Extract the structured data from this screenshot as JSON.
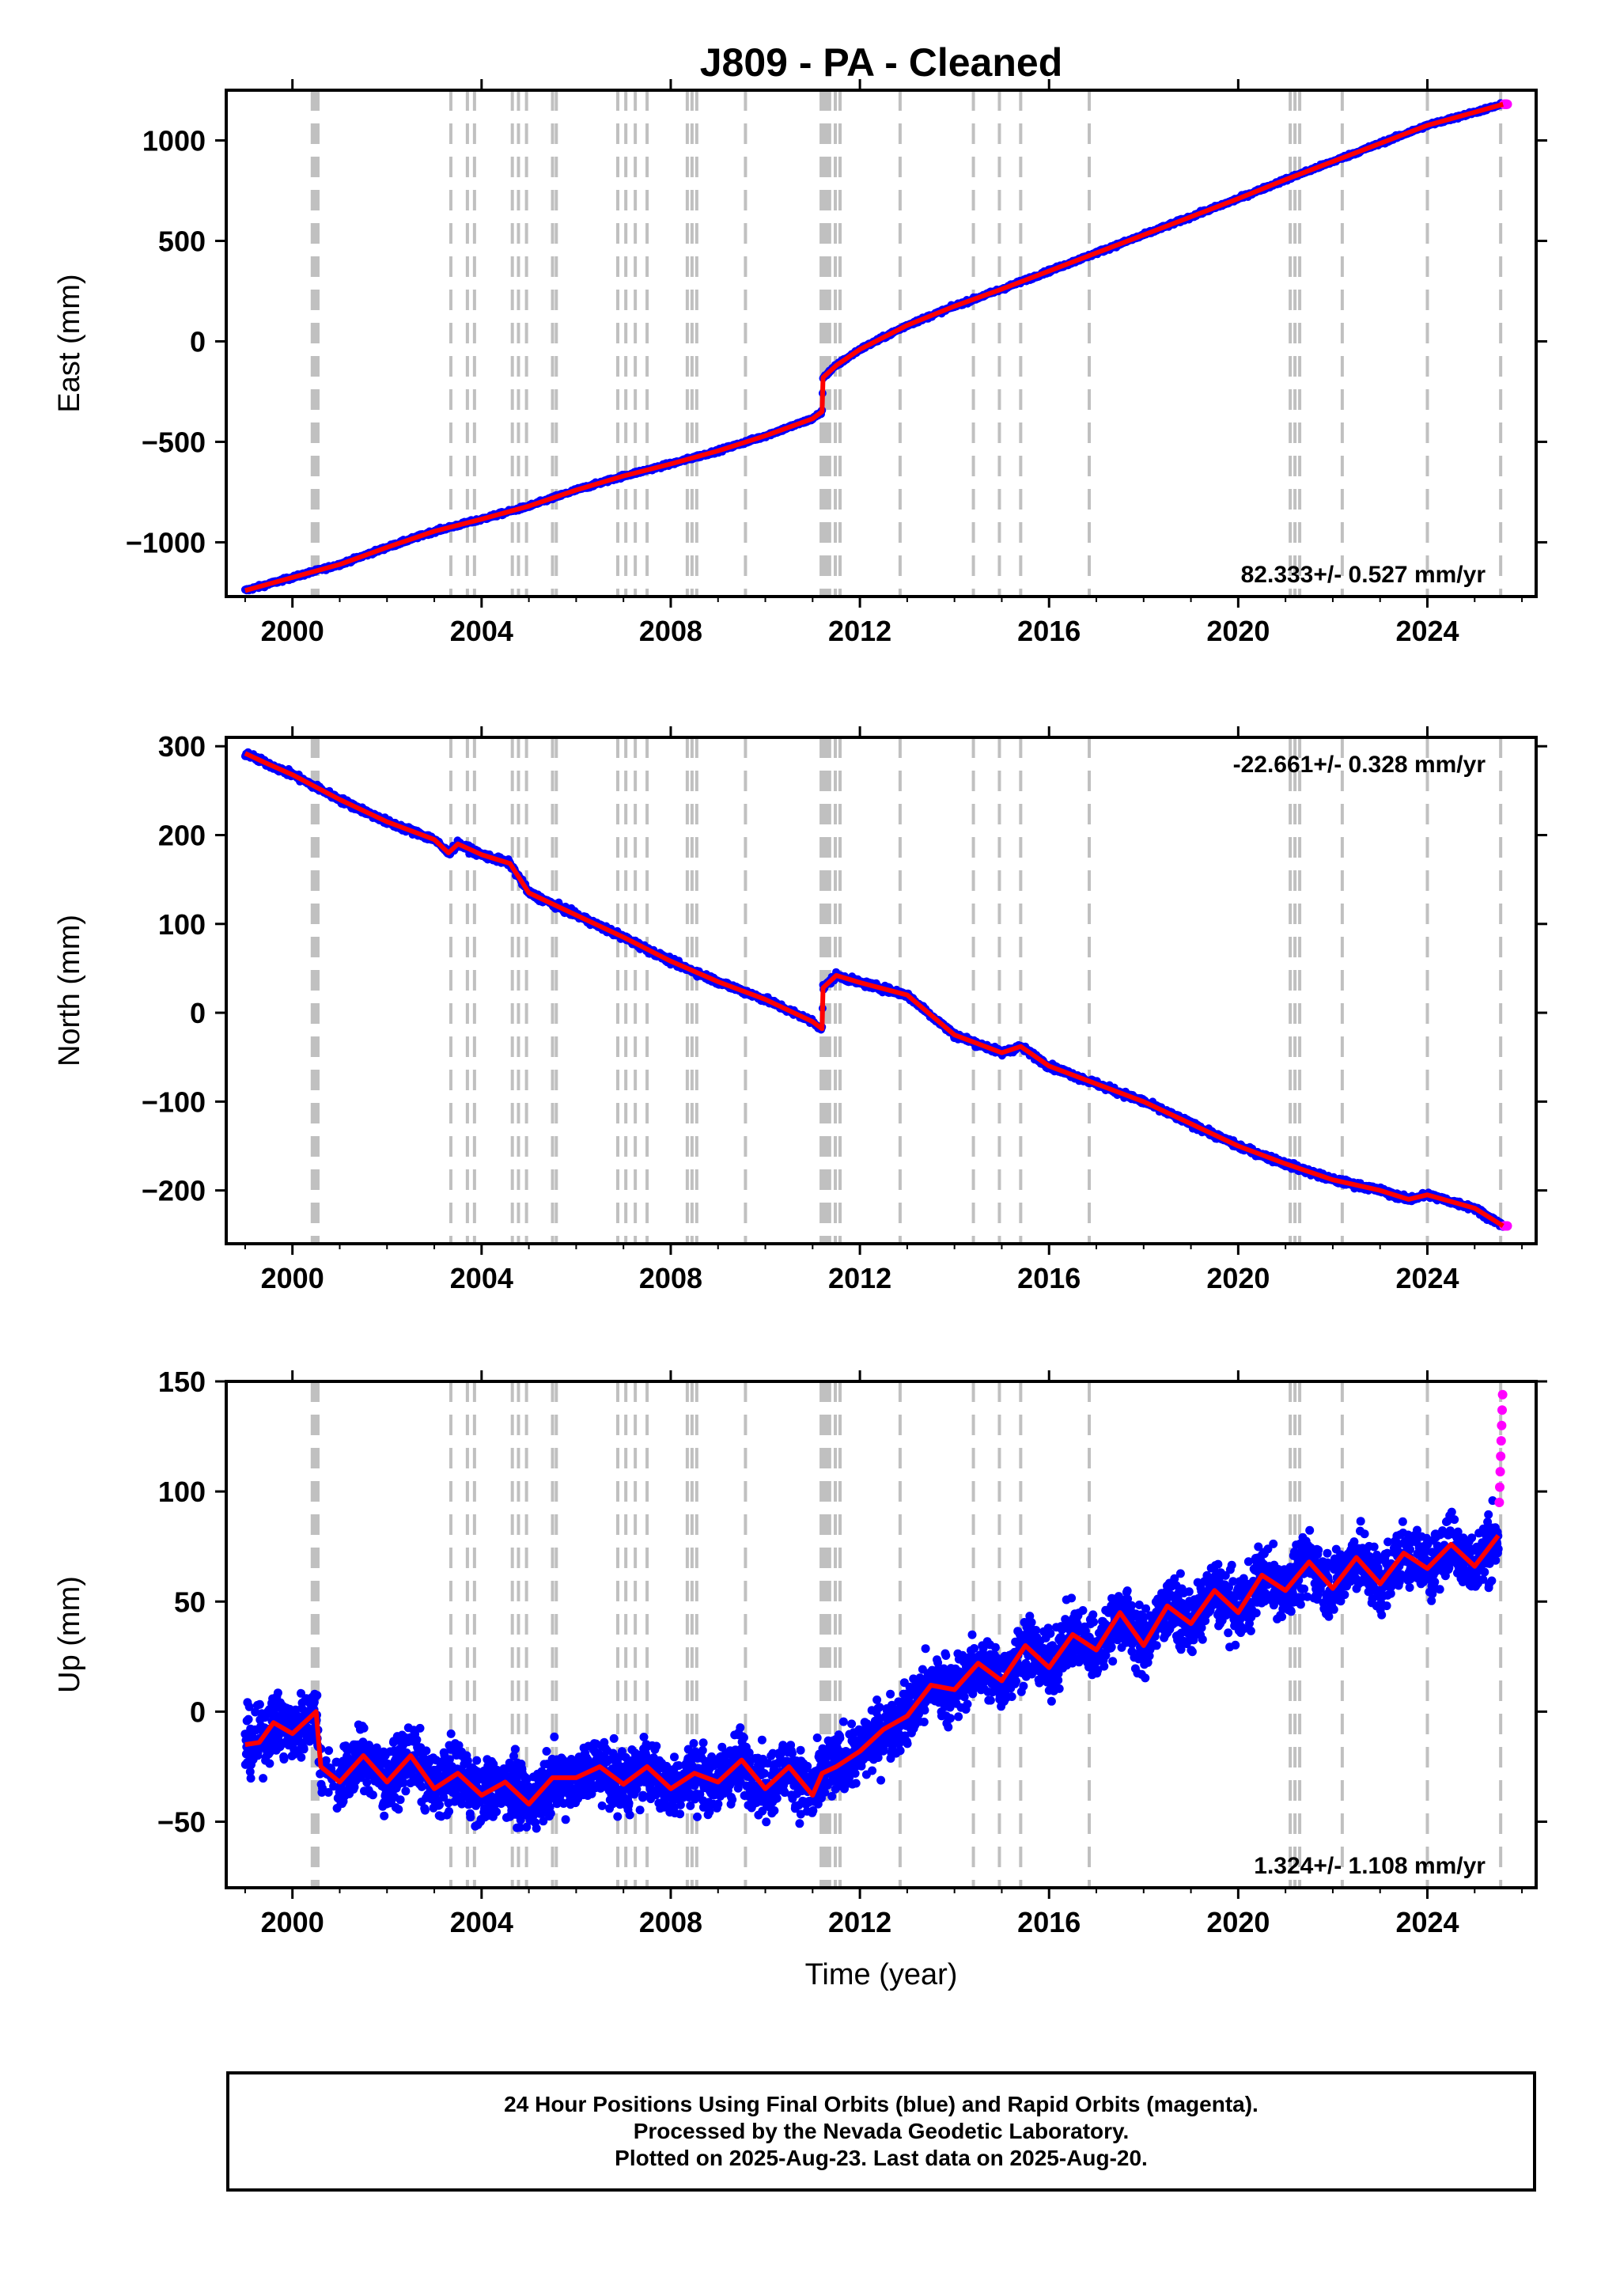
{
  "title": "J809  - PA - Cleaned",
  "xlabel": "Time (year)",
  "x_ticks": [
    2000,
    2004,
    2008,
    2012,
    2016,
    2020,
    2024
  ],
  "colors": {
    "final": "#0000ff",
    "rapid": "#ff00ff",
    "model": "#ff0000",
    "event_lines": "#c0c0c0"
  },
  "event_lines": [
    2000.42,
    2000.46,
    2000.5,
    2000.54,
    2003.35,
    2003.7,
    2003.85,
    2004.65,
    2004.78,
    2004.95,
    2005.5,
    2005.58,
    2006.88,
    2007.05,
    2007.25,
    2007.5,
    2008.35,
    2008.45,
    2008.55,
    2009.58,
    2011.18,
    2011.24,
    2011.3,
    2011.36,
    2011.48,
    2011.58,
    2012.85,
    2014.4,
    2014.95,
    2015.4,
    2016.85,
    2021.1,
    2021.2,
    2021.3,
    2022.2,
    2024.0,
    2025.55
  ],
  "footer": {
    "line1": "24 Hour Positions Using Final Orbits (blue) and Rapid Orbits (magenta).",
    "line2": "Processed by the Nevada Geodetic Laboratory.",
    "line3": "Plotted on 2025-Aug-23. Last data on 2025-Aug-20."
  },
  "chart_data": [
    {
      "type": "scatter",
      "ylabel": "East (mm)",
      "rate_label": "82.333+/- 0.527 mm/yr",
      "xlim": [
        1998.6,
        2026.3
      ],
      "ylim": [
        -1270,
        1250
      ],
      "y_ticks": [
        -1000,
        -500,
        0,
        500,
        1000
      ],
      "series": [
        {
          "x": [
            1999.0,
            2000.0,
            2001.0,
            2002.0,
            2003.0,
            2004.0,
            2005.0,
            2006.0,
            2007.0,
            2008.0,
            2009.0,
            2010.0,
            2011.0,
            2011.2,
            2011.22,
            2011.5,
            2012.0,
            2013.0,
            2014.0,
            2015.0,
            2016.0,
            2017.0,
            2018.0,
            2019.0,
            2020.0,
            2021.0,
            2022.0,
            2023.0,
            2024.0,
            2025.0,
            2025.6
          ],
          "y": [
            -1240,
            -1175,
            -1110,
            -1025,
            -945,
            -885,
            -820,
            -740,
            -670,
            -610,
            -545,
            -470,
            -385,
            -350,
            -180,
            -120,
            -40,
            80,
            175,
            260,
            350,
            440,
            530,
            620,
            710,
            805,
            895,
            985,
            1075,
            1140,
            1180
          ]
        }
      ]
    },
    {
      "type": "scatter",
      "ylabel": "North (mm)",
      "rate_label": "-22.661+/- 0.328 mm/yr",
      "xlim": [
        1998.6,
        2026.3
      ],
      "ylim": [
        -260,
        310
      ],
      "y_ticks": [
        -200,
        -100,
        0,
        100,
        200,
        300
      ],
      "series": [
        {
          "x": [
            1999.0,
            1999.4,
            2000.0,
            2001.0,
            2002.0,
            2003.0,
            2003.3,
            2003.5,
            2004.0,
            2004.6,
            2005.0,
            2006.0,
            2007.0,
            2008.0,
            2009.0,
            2010.0,
            2011.0,
            2011.2,
            2011.22,
            2011.5,
            2012.0,
            2013.0,
            2014.0,
            2015.0,
            2015.4,
            2016.0,
            2017.0,
            2018.0,
            2019.0,
            2020.0,
            2021.0,
            2022.0,
            2023.0,
            2023.6,
            2024.0,
            2025.0,
            2025.6
          ],
          "y": [
            292,
            282,
            268,
            240,
            215,
            195,
            180,
            190,
            178,
            168,
            135,
            110,
            85,
            58,
            35,
            15,
            -10,
            -18,
            28,
            42,
            34,
            20,
            -25,
            -45,
            -38,
            -60,
            -80,
            -100,
            -125,
            -150,
            -170,
            -188,
            -200,
            -210,
            -205,
            -220,
            -240
          ]
        }
      ]
    },
    {
      "type": "scatter",
      "ylabel": "Up (mm)",
      "rate_label": "1.324+/- 1.108 mm/yr",
      "xlim": [
        1998.6,
        2026.3
      ],
      "ylim": [
        -80,
        150
      ],
      "y_ticks": [
        -50,
        0,
        50,
        100,
        150
      ],
      "series": [
        {
          "x": [
            1999.0,
            1999.3,
            1999.6,
            2000.0,
            2000.5,
            2000.6,
            2001.0,
            2001.5,
            2002.0,
            2002.5,
            2003.0,
            2003.5,
            2004.0,
            2004.5,
            2005.0,
            2005.5,
            2006.0,
            2006.5,
            2007.0,
            2007.5,
            2008.0,
            2008.5,
            2009.0,
            2009.5,
            2010.0,
            2010.5,
            2011.0,
            2011.2,
            2011.5,
            2012.0,
            2012.5,
            2013.0,
            2013.5,
            2014.0,
            2014.5,
            2015.0,
            2015.5,
            2016.0,
            2016.5,
            2017.0,
            2017.5,
            2018.0,
            2018.5,
            2019.0,
            2019.5,
            2020.0,
            2020.5,
            2021.0,
            2021.5,
            2022.0,
            2022.5,
            2023.0,
            2023.5,
            2024.0,
            2024.5,
            2025.0,
            2025.5
          ],
          "y": [
            -15,
            -14,
            -5,
            -10,
            0,
            -25,
            -32,
            -20,
            -32,
            -20,
            -35,
            -28,
            -38,
            -32,
            -42,
            -30,
            -30,
            -25,
            -33,
            -25,
            -35,
            -28,
            -32,
            -22,
            -35,
            -25,
            -38,
            -28,
            -25,
            -18,
            -8,
            -2,
            12,
            10,
            22,
            14,
            30,
            20,
            35,
            28,
            45,
            30,
            48,
            40,
            55,
            45,
            62,
            55,
            68,
            56,
            70,
            58,
            72,
            65,
            76,
            66,
            80
          ]
        }
      ]
    }
  ]
}
